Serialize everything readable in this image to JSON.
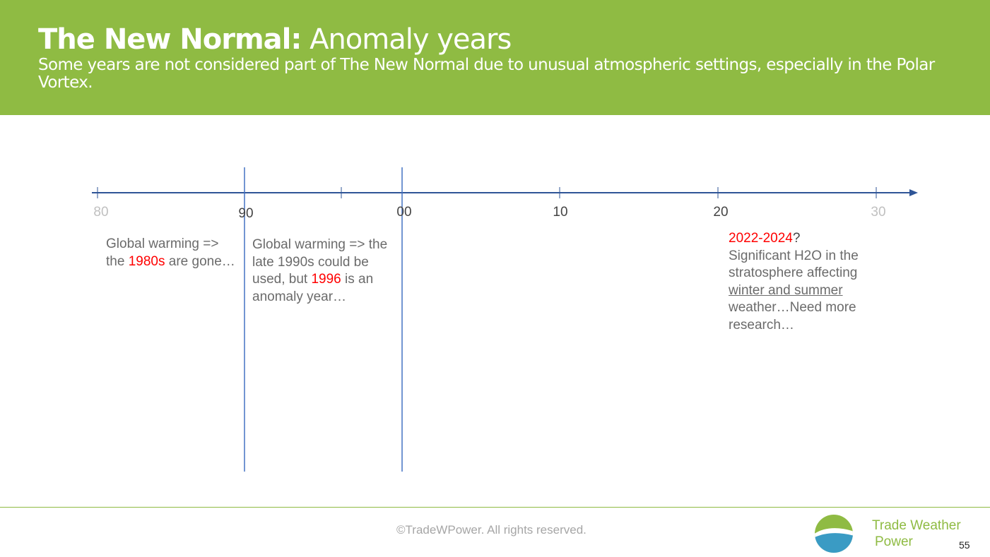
{
  "header": {
    "title_bold": "The New Normal:",
    "title_rest": " Anomaly years",
    "subtitle": "Some years are not considered part of The New Normal due to unusual atmospheric settings, especially in the Polar Vortex."
  },
  "timeline": {
    "ticks": [
      "80",
      "90",
      "00",
      "10",
      "20",
      "30"
    ],
    "colors": {
      "axis": "#2f5597",
      "marker": "#4472c4",
      "highlight": "#ff0000"
    }
  },
  "notes": {
    "n1": {
      "a": "Global warming => the ",
      "highlight": "1980s",
      "b": " are gone…"
    },
    "n2": {
      "a": "Global warming => the late 1990s could be used, but ",
      "highlight": "1996",
      "b": " is an anomaly year…"
    },
    "n3": {
      "highlight": "2022-2024",
      "q": "?",
      "a": "Significant H2O in the stratosphere affecting ",
      "underlined": "winter and summer",
      "b": " weather…Need more research…"
    }
  },
  "footer": {
    "copyright": "©TradeWPower. All rights reserved.",
    "brand_line1": "Trade Weather",
    "brand_line2": "Power",
    "page_number": "55",
    "brand_color": "#8fbb43"
  }
}
